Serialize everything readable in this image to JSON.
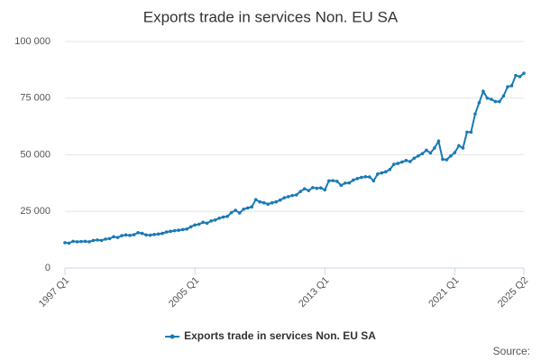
{
  "chart_data": {
    "type": "line",
    "title": "Exports trade in services Non. EU SA",
    "categories": [
      "1997 Q1",
      null,
      null,
      null,
      null,
      null,
      null,
      null,
      null,
      null,
      null,
      null,
      null,
      null,
      null,
      null,
      null,
      null,
      null,
      null,
      null,
      null,
      null,
      null,
      null,
      null,
      null,
      null,
      null,
      null,
      null,
      null,
      "2005 Q1",
      null,
      null,
      null,
      null,
      null,
      null,
      null,
      null,
      null,
      null,
      null,
      null,
      null,
      null,
      null,
      null,
      null,
      null,
      null,
      null,
      null,
      null,
      null,
      null,
      null,
      null,
      null,
      null,
      null,
      null,
      null,
      "2013 Q1",
      null,
      null,
      null,
      null,
      null,
      null,
      null,
      null,
      null,
      null,
      null,
      null,
      null,
      null,
      null,
      null,
      null,
      null,
      null,
      null,
      null,
      null,
      null,
      null,
      null,
      null,
      null,
      null,
      null,
      null,
      null,
      "2021 Q1",
      null,
      null,
      null,
      null,
      null,
      null,
      null,
      null,
      null,
      null,
      null,
      null,
      null,
      null,
      null,
      null,
      "2025 Q2"
    ],
    "series": [
      {
        "name": "Exports trade in services Non. EU SA",
        "color": "#1a7ab5",
        "values": [
          11200,
          11000,
          11800,
          11600,
          11700,
          11800,
          11600,
          12200,
          12400,
          12200,
          12800,
          13000,
          13800,
          13500,
          14300,
          14600,
          14400,
          14700,
          15600,
          15300,
          14600,
          14500,
          14800,
          15000,
          15300,
          15900,
          16200,
          16500,
          16700,
          17000,
          17200,
          18200,
          19000,
          19300,
          20200,
          19800,
          20800,
          21200,
          22000,
          22500,
          22800,
          24500,
          25500,
          24300,
          26000,
          26500,
          27000,
          30200,
          29200,
          28800,
          28200,
          28800,
          29200,
          30000,
          31000,
          31500,
          32000,
          32300,
          33800,
          35000,
          34200,
          35500,
          35200,
          35400,
          34500,
          38500,
          38600,
          38300,
          36500,
          37500,
          37600,
          38800,
          39500,
          40000,
          40300,
          40200,
          38500,
          41500,
          42000,
          42500,
          43500,
          45800,
          46200,
          46800,
          47500,
          47000,
          48500,
          49500,
          50500,
          52000,
          50800,
          53000,
          56000,
          48000,
          47800,
          49500,
          51000,
          54000,
          53000,
          60000,
          60000,
          68000,
          73000,
          78000,
          75000,
          74500,
          73500,
          73500,
          76000,
          80000,
          80500,
          85000,
          84500,
          86000
        ]
      }
    ],
    "ylim": [
      0,
      100000
    ],
    "yticks": [
      0,
      {
        "value": 25000,
        "label": "25 000"
      },
      {
        "value": 50000,
        "label": "50 000"
      },
      {
        "value": 75000,
        "label": "75 000"
      },
      {
        "value": 100000,
        "label": "100 000"
      }
    ],
    "grid": true,
    "source": "Source:"
  }
}
